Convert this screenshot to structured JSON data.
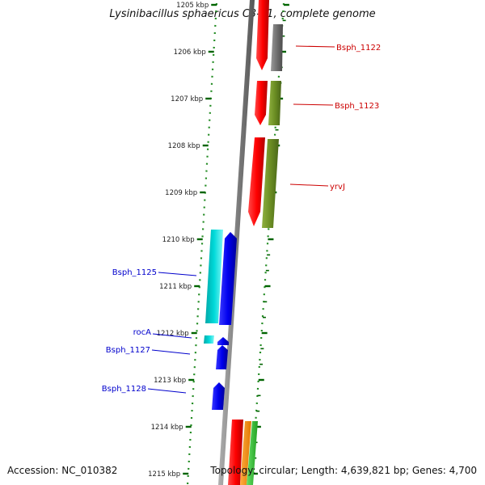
{
  "title": "Lysinibacillus sphaericus C3-41, complete genome",
  "footer": {
    "accession": "Accession: NC_010382",
    "summary": "Topology: circular; Length: 4,639,821 bp; Genes: 4,700"
  },
  "ticks": [
    {
      "label": "1205 kbp",
      "kbp": 1205
    },
    {
      "label": "1206 kbp",
      "kbp": 1206
    },
    {
      "label": "1207 kbp",
      "kbp": 1207
    },
    {
      "label": "1208 kbp",
      "kbp": 1208
    },
    {
      "label": "1209 kbp",
      "kbp": 1209
    },
    {
      "label": "1210 kbp",
      "kbp": 1210
    },
    {
      "label": "1211 kbp",
      "kbp": 1211
    },
    {
      "label": "1212 kbp",
      "kbp": 1212
    },
    {
      "label": "1213 kbp",
      "kbp": 1213
    },
    {
      "label": "1214 kbp",
      "kbp": 1214
    },
    {
      "label": "1215 kbp",
      "kbp": 1215
    }
  ],
  "gene_labels": [
    {
      "text": "Bsph_1122",
      "color": "#cc0000"
    },
    {
      "text": "Bsph_1123",
      "color": "#cc0000"
    },
    {
      "text": "yrvJ",
      "color": "#cc0000"
    },
    {
      "text": "Bsph_1125",
      "color": "#0000cc"
    },
    {
      "text": "rocA",
      "color": "#0000cc"
    },
    {
      "text": "Bsph_1127",
      "color": "#0000cc"
    },
    {
      "text": "Bsph_1128",
      "color": "#0000cc"
    }
  ],
  "colors": {
    "forward_cds": "#ff0000",
    "reverse_cds": "#0000ee",
    "forward_feature_a": "#707070",
    "forward_feature_b": "#6b8e23",
    "reverse_feature": "#00cccc",
    "orange_feature": "#ff8c00",
    "green_feature": "#33cc33",
    "tick_color": "#006400",
    "backbone": "#808080"
  }
}
